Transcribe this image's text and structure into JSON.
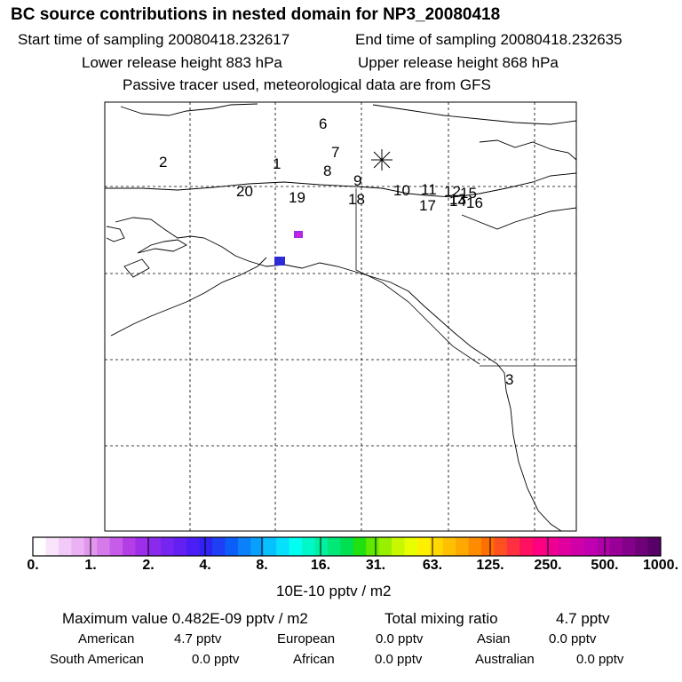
{
  "header": {
    "title": "BC  source contributions in nested domain for NP3_20080418",
    "start_time": "Start time of sampling 20080418.232617",
    "end_time": "End time of sampling 20080418.232635",
    "lower_release": "Lower release height  883 hPa",
    "upper_release": "Upper release height  868 hPa",
    "tracer_note": "Passive tracer used, meteorological data are from GFS"
  },
  "map": {
    "trajectory_labels": [
      "1",
      "2",
      "3",
      "6",
      "7",
      "8",
      "9",
      "10",
      "11",
      "12",
      "13",
      "14",
      "15",
      "16",
      "17",
      "18",
      "19",
      "20"
    ],
    "colors": {
      "pixel_a": "#9c2bf0",
      "pixel_b": "#d51fd3",
      "pixel_c": "#2e2bd6"
    }
  },
  "colorbar": {
    "colors": [
      "#ffffff",
      "#f9e4fb",
      "#f2caf7",
      "#ebb2f3",
      "#e297ef",
      "#d67aeb",
      "#c65ce8",
      "#b33ee6",
      "#9d2ee9",
      "#8a2aec",
      "#7624ef",
      "#6220f2",
      "#4a1ef5",
      "#2f22f2",
      "#1d3ff5",
      "#0b5ef8",
      "#0a80fb",
      "#08a0fd",
      "#07c0fe",
      "#06e0fd",
      "#00fff0",
      "#00f8c8",
      "#00f0a0",
      "#00e878",
      "#00e050",
      "#20e010",
      "#60e800",
      "#98f000",
      "#c8f800",
      "#e8ff00",
      "#fff000",
      "#ffd800",
      "#ffc000",
      "#ffa800",
      "#ff8c00",
      "#ff6e00",
      "#ff5020",
      "#ff3040",
      "#ff1060",
      "#ff0080",
      "#f00090",
      "#e000a0",
      "#d000a8",
      "#c000b0",
      "#b000a8",
      "#9a0098",
      "#840088",
      "#6e0078",
      "#580068"
    ],
    "ticks": [
      "0.",
      "1.",
      "2.",
      "4.",
      "8.",
      "16.",
      "31.",
      "63.",
      "125.",
      "250.",
      "500.",
      "1000."
    ],
    "unit_label": "10E-10 pptv / m2"
  },
  "summary": {
    "max_label": "Maximum value  0.482E-09 pptv / m2",
    "total_label": "Total mixing ratio",
    "total_value": "4.7 pptv",
    "regions": [
      {
        "name": "American",
        "value": "4.7 pptv"
      },
      {
        "name": "European",
        "value": "0.0 pptv"
      },
      {
        "name": "Asian",
        "value": "0.0 pptv"
      },
      {
        "name": "South American",
        "value": "0.0 pptv"
      },
      {
        "name": "African",
        "value": "0.0 pptv"
      },
      {
        "name": "Australian",
        "value": "0.0 pptv"
      }
    ]
  }
}
